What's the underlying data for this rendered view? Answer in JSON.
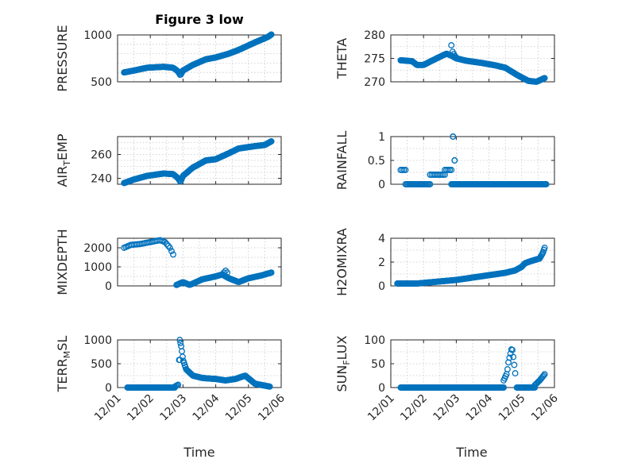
{
  "title": "Figure 3 low",
  "xlabel_time": "Time",
  "colors": {
    "series": "#0072bd",
    "axes": "#262626",
    "grid": "#c8c8c8"
  },
  "chart_data": [
    {
      "type": "scatter",
      "ylabel": "PRESSURE",
      "ylim": [
        500,
        1000
      ],
      "yticks": [
        500,
        1000
      ],
      "yticklabels": [
        "500",
        "1000"
      ],
      "yminor": 5,
      "xlim": [
        0,
        5
      ],
      "xticks": [
        0,
        1,
        2,
        3,
        4,
        5
      ],
      "xticklabels": [
        "12/01",
        "12/02",
        "12/03",
        "12/04",
        "12/05",
        "12/06"
      ],
      "show_xticklabels": false,
      "segments": [
        {
          "x": [
            0.2,
            0.5,
            0.9,
            1.4,
            1.7,
            1.85,
            1.92,
            2.0,
            2.3,
            2.7,
            3.0,
            3.4,
            3.7,
            4.2,
            4.6,
            4.7
          ],
          "y": [
            600,
            620,
            650,
            660,
            650,
            610,
            570,
            620,
            680,
            740,
            760,
            800,
            840,
            920,
            980,
            1005
          ],
          "step": 0.022
        }
      ]
    },
    {
      "type": "scatter",
      "ylabel": "THETA",
      "ylim": [
        270,
        280
      ],
      "yticks": [
        270,
        275,
        280
      ],
      "yticklabels": [
        "270",
        "275",
        "280"
      ],
      "yminor": 2,
      "xlim": [
        0,
        5
      ],
      "xticks": [
        0,
        1,
        2,
        3,
        4,
        5
      ],
      "xticklabels": [
        "12/01",
        "12/02",
        "12/03",
        "12/04",
        "12/05",
        "12/06"
      ],
      "show_xticklabels": false,
      "segments": [
        {
          "x": [
            0.3,
            0.65,
            0.8,
            1.0,
            1.4,
            1.7,
            1.85,
            2.0,
            2.3,
            2.8,
            3.2,
            3.5,
            3.85,
            4.2,
            4.45,
            4.7
          ],
          "y": [
            274.6,
            274.4,
            273.6,
            273.6,
            275.0,
            276.0,
            275.6,
            275.0,
            274.5,
            274.0,
            273.5,
            273.0,
            271.5,
            270.2,
            270.0,
            270.8
          ],
          "step": 0.022
        },
        {
          "x": [
            1.85,
            1.88,
            1.92,
            1.96,
            2.0
          ],
          "y": [
            277.8,
            276.5,
            276.0,
            275.5,
            275.2
          ],
          "step": 0.035
        }
      ]
    },
    {
      "type": "scatter",
      "ylabel": "AIR_TEMP",
      "ylim": [
        235,
        275
      ],
      "yticks": [
        240,
        260
      ],
      "yticklabels": [
        "240",
        "260"
      ],
      "yminor": 4,
      "xlim": [
        0,
        5
      ],
      "xticks": [
        0,
        1,
        2,
        3,
        4,
        5
      ],
      "xticklabels": [
        "12/01",
        "12/02",
        "12/03",
        "12/04",
        "12/05",
        "12/06"
      ],
      "show_xticklabels": false,
      "segments": [
        {
          "x": [
            0.2,
            0.5,
            0.9,
            1.4,
            1.7,
            1.85,
            1.92,
            2.0,
            2.3,
            2.7,
            3.0,
            3.4,
            3.7,
            4.2,
            4.5,
            4.7
          ],
          "y": [
            236,
            239,
            242,
            244,
            243.5,
            240,
            237,
            242,
            249,
            255,
            256,
            261,
            265,
            267,
            268,
            271
          ],
          "step": 0.022
        }
      ]
    },
    {
      "type": "scatter",
      "ylabel": "RAINFALL",
      "ylim": [
        0,
        1
      ],
      "yticks": [
        0,
        0.5,
        1
      ],
      "yticklabels": [
        "0",
        "0.5",
        "1"
      ],
      "yminor": 2,
      "xlim": [
        0,
        5
      ],
      "xticks": [
        0,
        1,
        2,
        3,
        4,
        5
      ],
      "xticklabels": [
        "12/01",
        "12/02",
        "12/03",
        "12/04",
        "12/05",
        "12/06"
      ],
      "show_xticklabels": false,
      "segments": [
        {
          "x": [
            0.45,
            1.2
          ],
          "y": [
            0,
            0
          ],
          "step": 0.04
        },
        {
          "x": [
            1.85,
            4.75
          ],
          "y": [
            0,
            0
          ],
          "step": 0.03
        },
        {
          "x": [
            0.3,
            0.45
          ],
          "y": [
            0.3,
            0.3
          ],
          "step": 0.05
        },
        {
          "x": [
            1.2,
            1.65
          ],
          "y": [
            0.2,
            0.2
          ],
          "step": 0.05
        },
        {
          "x": [
            1.65,
            1.85
          ],
          "y": [
            0.3,
            0.3
          ],
          "step": 0.05
        },
        {
          "x": [
            1.95,
            1.95
          ],
          "y": [
            0.5,
            0.5
          ],
          "step": 0.1
        },
        {
          "x": [
            1.9,
            1.9
          ],
          "y": [
            1.0,
            1.0
          ],
          "step": 0.1
        },
        {
          "x": [
            0.95,
            0.95
          ],
          "y": [
            0.0,
            0.0
          ],
          "step": 0.1
        }
      ]
    },
    {
      "type": "scatter",
      "ylabel": "MIXDEPTH",
      "ylim": [
        0,
        2500
      ],
      "yticks": [
        0,
        1000,
        2000
      ],
      "yticklabels": [
        "0",
        "1000",
        "2000"
      ],
      "yminor": 2,
      "xlim": [
        0,
        5
      ],
      "xticks": [
        0,
        1,
        2,
        3,
        4,
        5
      ],
      "xticklabels": [
        "12/01",
        "12/02",
        "12/03",
        "12/04",
        "12/05",
        "12/06"
      ],
      "show_xticklabels": false,
      "segments": [
        {
          "x": [
            0.2,
            0.4,
            0.7,
            1.0,
            1.3,
            1.45,
            1.6,
            1.7
          ],
          "y": [
            2000,
            2150,
            2200,
            2300,
            2400,
            2300,
            2000,
            1650
          ],
          "step": 0.05
        },
        {
          "x": [
            1.8,
            2.0,
            2.2,
            2.6,
            3.0,
            3.2,
            3.4,
            3.7,
            4.0,
            4.4,
            4.7
          ],
          "y": [
            50,
            200,
            50,
            350,
            500,
            600,
            400,
            200,
            400,
            550,
            700
          ],
          "step": 0.03
        },
        {
          "x": [
            3.2,
            3.3,
            3.35
          ],
          "y": [
            600,
            800,
            700
          ],
          "step": 0.05
        }
      ]
    },
    {
      "type": "scatter",
      "ylabel": "H2OMIXRA",
      "ylim": [
        0,
        4
      ],
      "yticks": [
        0,
        2,
        4
      ],
      "yticklabels": [
        "0",
        "2",
        "4"
      ],
      "yminor": 2,
      "xlim": [
        0,
        5
      ],
      "xticks": [
        0,
        1,
        2,
        3,
        4,
        5
      ],
      "xticklabels": [
        "12/01",
        "12/02",
        "12/03",
        "12/04",
        "12/05",
        "12/06"
      ],
      "show_xticklabels": false,
      "segments": [
        {
          "x": [
            0.2,
            0.8,
            1.2,
            1.6,
            2.0,
            2.5,
            3.0,
            3.5,
            3.8,
            4.0,
            4.1,
            4.3,
            4.55,
            4.65,
            4.7
          ],
          "y": [
            0.2,
            0.2,
            0.3,
            0.4,
            0.5,
            0.7,
            0.9,
            1.1,
            1.3,
            1.6,
            1.9,
            2.1,
            2.3,
            2.8,
            3.2
          ],
          "step": 0.022
        }
      ]
    },
    {
      "type": "scatter",
      "ylabel": "TERR_MSL",
      "ylim": [
        0,
        1000
      ],
      "yticks": [
        0,
        500,
        1000
      ],
      "yticklabels": [
        "0",
        "500",
        "1000"
      ],
      "yminor": 2,
      "xlim": [
        0,
        5
      ],
      "xticks": [
        0,
        1,
        2,
        3,
        4,
        5
      ],
      "xticklabels": [
        "12/01",
        "12/02",
        "12/03",
        "12/04",
        "12/05",
        "12/06"
      ],
      "show_xticklabels": true,
      "segments": [
        {
          "x": [
            0.3,
            1.75
          ],
          "y": [
            0,
            0
          ],
          "step": 0.03
        },
        {
          "x": [
            1.75,
            1.85
          ],
          "y": [
            20,
            60
          ],
          "step": 0.04
        },
        {
          "x": [
            1.9,
            1.95,
            2.0,
            2.1,
            2.3,
            2.6,
            3.0,
            3.3,
            3.6,
            3.9,
            4.2,
            4.5,
            4.65
          ],
          "y": [
            1000,
            850,
            580,
            380,
            250,
            200,
            180,
            150,
            180,
            250,
            80,
            40,
            20
          ],
          "step": 0.022
        },
        {
          "x": [
            1.88,
            1.9
          ],
          "y": [
            580,
            580
          ],
          "step": 0.05
        }
      ]
    },
    {
      "type": "scatter",
      "ylabel": "SUN_FLUX",
      "ylim": [
        0,
        100
      ],
      "yticks": [
        0,
        50,
        100
      ],
      "yticklabels": [
        "0",
        "50",
        "100"
      ],
      "yminor": 2,
      "xlim": [
        0,
        5
      ],
      "xticks": [
        0,
        1,
        2,
        3,
        4,
        5
      ],
      "xticklabels": [
        "12/01",
        "12/02",
        "12/03",
        "12/04",
        "12/05",
        "12/06"
      ],
      "show_xticklabels": true,
      "segments": [
        {
          "x": [
            0.3,
            3.45
          ],
          "y": [
            0,
            0
          ],
          "step": 0.03
        },
        {
          "x": [
            3.45,
            3.55,
            3.6,
            3.65,
            3.7,
            3.75,
            3.8
          ],
          "y": [
            15,
            30,
            55,
            70,
            85,
            60,
            30
          ],
          "step": 0.03
        },
        {
          "x": [
            3.85,
            4.4
          ],
          "y": [
            0,
            0
          ],
          "step": 0.03
        },
        {
          "x": [
            4.4,
            4.55,
            4.7
          ],
          "y": [
            5,
            15,
            28
          ],
          "step": 0.03
        }
      ]
    }
  ]
}
